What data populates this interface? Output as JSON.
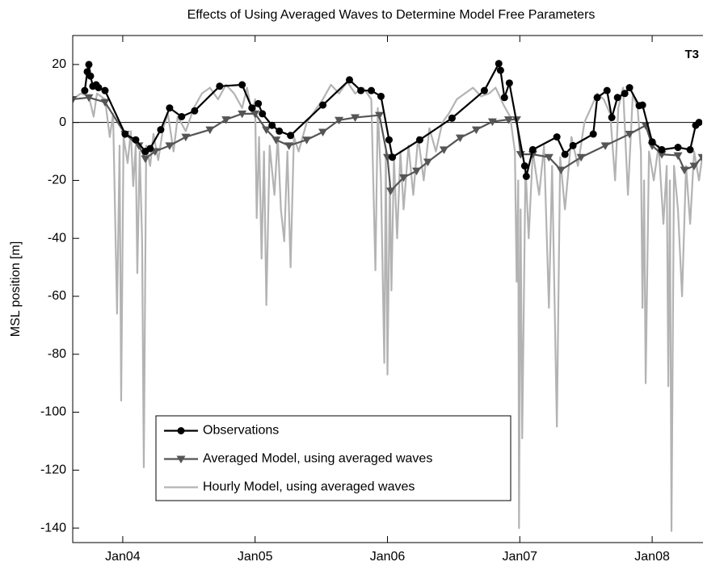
{
  "chart_data": {
    "type": "line",
    "title": "Effects of Using Averaged Waves to Determine Model Free Parameters",
    "y_label": "MSL position [m]",
    "annotation": "T3",
    "xlim": [
      2003.622,
      2008.378
    ],
    "ylim": [
      -145,
      30
    ],
    "xticks": [
      {
        "value": 2004,
        "label": "Jan04"
      },
      {
        "value": 2005,
        "label": "Jan05"
      },
      {
        "value": 2006,
        "label": "Jan06"
      },
      {
        "value": 2007,
        "label": "Jan07"
      },
      {
        "value": 2008,
        "label": "Jan08"
      }
    ],
    "yticks": [
      -140,
      -120,
      -100,
      -80,
      -60,
      -40,
      -20,
      0,
      20
    ],
    "grid": false,
    "zero_line": true,
    "legend": "lower left",
    "series": [
      {
        "name": "Observations",
        "color": "#000000",
        "marker": "circle",
        "x": [
          2003.713,
          2003.732,
          2003.744,
          2003.756,
          2003.774,
          2003.799,
          2003.817,
          2003.866,
          2004.018,
          2004.098,
          2004.171,
          2004.207,
          2004.287,
          2004.354,
          2004.445,
          2004.543,
          2004.732,
          2004.902,
          2004.976,
          2005.024,
          2005.055,
          2005.128,
          2005.183,
          2005.268,
          2005.512,
          2005.713,
          2005.799,
          2005.878,
          2005.951,
          2006.012,
          2006.037,
          2006.244,
          2006.488,
          2006.732,
          2006.841,
          2006.854,
          2006.884,
          2006.921,
          2007.037,
          2007.049,
          2007.098,
          2007.28,
          2007.341,
          2007.402,
          2007.555,
          2007.585,
          2007.659,
          2007.695,
          2007.738,
          2007.793,
          2007.829,
          2007.902,
          2007.927,
          2008.0,
          2008.073,
          2008.195,
          2008.287,
          2008.329,
          2008.354
        ],
        "values": [
          11,
          17.5,
          20,
          16,
          12.5,
          13,
          12,
          11,
          -4,
          -6,
          -10,
          -9,
          -2.5,
          5,
          2,
          4,
          12.5,
          13,
          5,
          6.5,
          3,
          -1,
          -3,
          -4.5,
          6,
          14.7,
          11,
          11,
          9,
          -6,
          -12,
          -6,
          1.5,
          11,
          20.3,
          18,
          8.6,
          13.6,
          -15,
          -18.6,
          -9.4,
          -5,
          -11,
          -8,
          -4,
          8.6,
          11,
          1.7,
          8.6,
          10,
          12,
          5.8,
          6,
          -6.7,
          -9.4,
          -8.6,
          -9.4,
          -1,
          0
        ]
      },
      {
        "name": "Averaged Model, using averaged waves",
        "color": "#555555",
        "marker": "triangle-down",
        "x": [
          2003.622,
          2003.744,
          2003.866,
          2004.018,
          2004.122,
          2004.171,
          2004.244,
          2004.354,
          2004.476,
          2004.659,
          2004.78,
          2004.902,
          2005.0,
          2005.085,
          2005.159,
          2005.256,
          2005.39,
          2005.512,
          2005.634,
          2005.756,
          2005.939,
          2006.0,
          2006.024,
          2006.122,
          2006.22,
          2006.305,
          2006.427,
          2006.549,
          2006.671,
          2006.793,
          2006.915,
          2006.976,
          2007.006,
          2007.098,
          2007.22,
          2007.311,
          2007.463,
          2007.646,
          2007.829,
          2007.951,
          2008.0,
          2008.073,
          2008.195,
          2008.244,
          2008.317,
          2008.378
        ],
        "values": [
          8,
          8.6,
          7,
          -4,
          -8,
          -12.5,
          -10,
          -8,
          -5,
          -2.5,
          1,
          3,
          3,
          -2.5,
          -6,
          -8,
          -6,
          -3.3,
          0.8,
          1.7,
          2.5,
          -12,
          -23.6,
          -19,
          -16.7,
          -13.6,
          -9.4,
          -5.3,
          -2.5,
          0.3,
          1,
          1,
          -11,
          -11,
          -12,
          -16.4,
          -12,
          -8,
          -4,
          -1,
          -8,
          -11,
          -11.4,
          -16.4,
          -15,
          -12
        ]
      },
      {
        "name": "Hourly Model, using averaged waves",
        "color": "#b3b3b3",
        "marker": "none",
        "x": [
          2003.622,
          2003.683,
          2003.744,
          2003.78,
          2003.805,
          2003.866,
          2003.902,
          2003.927,
          2003.957,
          2003.976,
          2003.988,
          2004.006,
          2004.037,
          2004.061,
          2004.079,
          2004.098,
          2004.11,
          2004.128,
          2004.146,
          2004.159,
          2004.177,
          2004.207,
          2004.232,
          2004.268,
          2004.305,
          2004.341,
          2004.384,
          2004.415,
          2004.476,
          2004.537,
          2004.598,
          2004.659,
          2004.72,
          2004.78,
          2004.841,
          2004.902,
          2004.939,
          2004.976,
          2005.0,
          2005.012,
          2005.03,
          2005.049,
          2005.067,
          2005.085,
          2005.11,
          2005.146,
          2005.171,
          2005.195,
          2005.22,
          2005.244,
          2005.268,
          2005.293,
          2005.329,
          2005.39,
          2005.451,
          2005.512,
          2005.573,
          2005.634,
          2005.695,
          2005.756,
          2005.817,
          2005.878,
          2005.909,
          2005.927,
          2005.951,
          2005.976,
          2005.988,
          2006.0,
          2006.018,
          2006.03,
          2006.049,
          2006.073,
          2006.098,
          2006.122,
          2006.159,
          2006.195,
          2006.232,
          2006.274,
          2006.317,
          2006.366,
          2006.415,
          2006.463,
          2006.524,
          2006.585,
          2006.646,
          2006.707,
          2006.768,
          2006.817,
          2006.878,
          2006.927,
          2006.963,
          2006.976,
          2006.988,
          2006.994,
          2007.006,
          2007.018,
          2007.043,
          2007.067,
          2007.098,
          2007.146,
          2007.183,
          2007.22,
          2007.244,
          2007.28,
          2007.305,
          2007.341,
          2007.39,
          2007.439,
          2007.488,
          2007.537,
          2007.585,
          2007.634,
          2007.683,
          2007.72,
          2007.744,
          2007.78,
          2007.817,
          2007.854,
          2007.89,
          2007.915,
          2007.927,
          2007.939,
          2007.951,
          2007.976,
          2008.012,
          2008.049,
          2008.085,
          2008.11,
          2008.122,
          2008.134,
          2008.146,
          2008.165,
          2008.195,
          2008.226,
          2008.256,
          2008.287,
          2008.317,
          2008.354,
          2008.378
        ],
        "values": [
          8,
          10,
          9,
          2,
          10,
          8,
          -5,
          3,
          -66,
          -8,
          -96,
          -5,
          -14,
          -3,
          -22,
          -8,
          -52,
          -10,
          -40,
          -119,
          -8,
          -15,
          -4,
          -13,
          -2,
          3,
          -10,
          2,
          -3,
          5,
          10,
          12,
          8,
          13,
          10,
          5,
          12,
          3,
          8,
          -33,
          -5,
          -47,
          -10,
          -63,
          -8,
          -25,
          -5,
          -30,
          -41,
          -10,
          -50,
          -5,
          -10,
          0,
          4,
          8,
          13,
          10,
          14,
          10,
          12,
          8,
          -51,
          5,
          -20,
          -83,
          -10,
          -87,
          -20,
          -58,
          -12,
          -40,
          -10,
          -30,
          -8,
          -25,
          -5,
          -20,
          -2,
          -10,
          0,
          3,
          8,
          10,
          12,
          9,
          10,
          12,
          6,
          2,
          -10,
          -55,
          -20,
          -140,
          -30,
          -109,
          -15,
          -40,
          -10,
          -25,
          -8,
          -64,
          -15,
          -105,
          -12,
          -30,
          -5,
          -15,
          0,
          5,
          10,
          8,
          3,
          -20,
          5,
          12,
          -25,
          10,
          5,
          -10,
          -64,
          -20,
          -90,
          -10,
          -20,
          -8,
          -35,
          -15,
          -91,
          -20,
          -141,
          -15,
          -30,
          -60,
          -15,
          -35,
          -10,
          -20,
          -12
        ]
      }
    ]
  }
}
